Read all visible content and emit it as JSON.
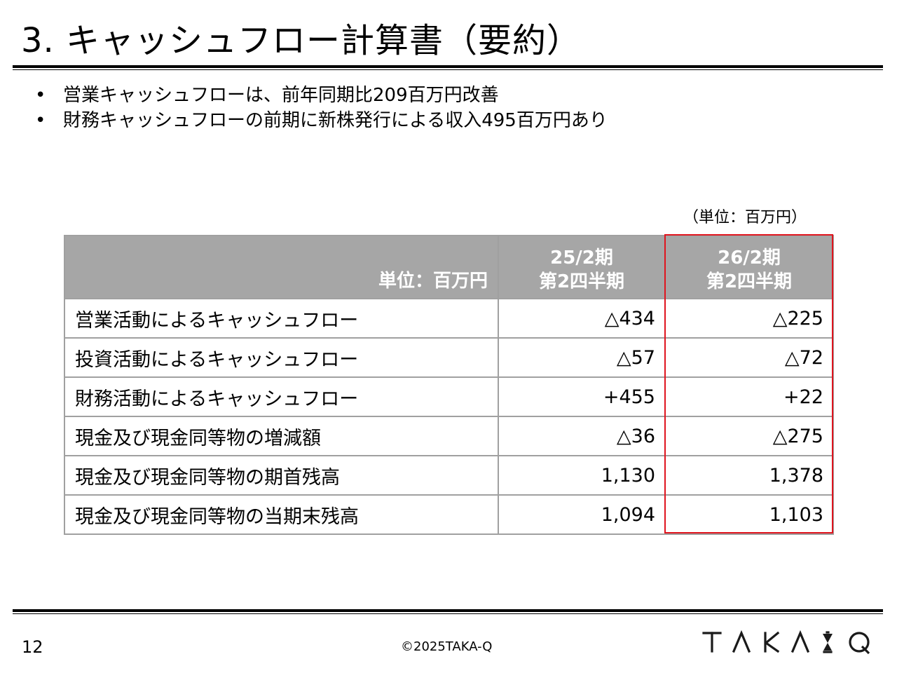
{
  "title": "3. キャッシュフロー計算書（要約）",
  "bullets": [
    {
      "marker": "•",
      "text": "営業キャッシュフローは、前年同期比209百万円改善"
    },
    {
      "marker": "•",
      "text": "財務キャッシュフローの前期に新株発行による収入495百万円あり"
    }
  ],
  "unit_note": "（単位：百万円）",
  "table": {
    "header": {
      "unit": "単位：百万円",
      "periods": [
        {
          "year": "25/2期",
          "quarter": "第2四半期"
        },
        {
          "year": "26/2期",
          "quarter": "第2四半期"
        }
      ]
    },
    "rows": [
      {
        "label": "営業活動によるキャッシュフロー",
        "prev": "△434",
        "curr": "△225"
      },
      {
        "label": "投資活動によるキャッシュフロー",
        "prev": "△57",
        "curr": "△72"
      },
      {
        "label": "財務活動によるキャッシュフロー",
        "prev": "+455",
        "curr": "+22"
      },
      {
        "label": "現金及び現金同等物の増減額",
        "prev": "△36",
        "curr": "△275"
      },
      {
        "label": "現金及び現金同等物の期首残高",
        "prev": "1,130",
        "curr": "1,378"
      },
      {
        "label": "現金及び現金同等物の当期末残高",
        "prev": "1,094",
        "curr": "1,103"
      }
    ]
  },
  "footer": {
    "page_number": "12",
    "copyright": "©2025TAKA-Q",
    "logo": "TAKA-Q"
  },
  "colors": {
    "header_bg": "#a6a6a6",
    "highlight_border": "#e0141e",
    "grid": "#a0a0a0"
  }
}
